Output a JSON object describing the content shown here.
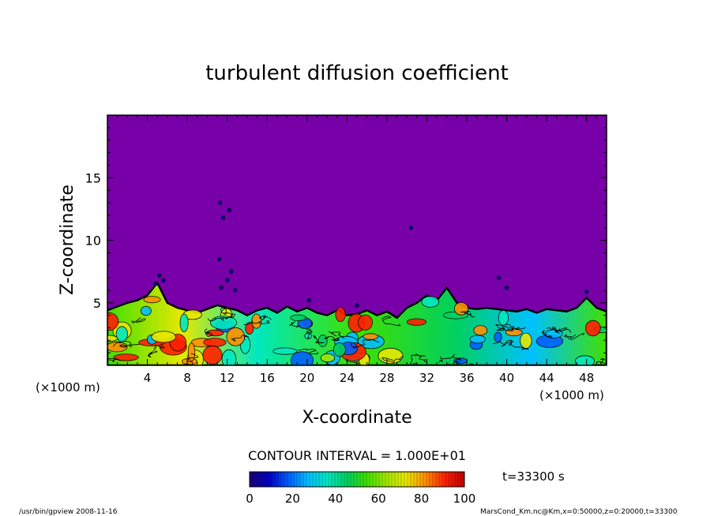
{
  "chart_data": {
    "type": "heatmap",
    "title": "turbulent diffusion coefficient",
    "xlabel": "X-coordinate",
    "ylabel": "Z-coordinate",
    "x_units_left": "(×1000 m)",
    "x_units_right": "(×1000 m)",
    "xlim": [
      0,
      50
    ],
    "ylim": [
      0,
      20
    ],
    "x_ticks": [
      4,
      8,
      12,
      16,
      20,
      24,
      28,
      32,
      36,
      40,
      44,
      48
    ],
    "x_tick_labels": [
      "4",
      "8",
      "12",
      "16",
      "20",
      "24",
      "28",
      "32",
      "36",
      "40",
      "44",
      "48"
    ],
    "y_ticks": [
      5,
      10,
      15
    ],
    "y_tick_labels": [
      "5",
      "10",
      "15"
    ],
    "background_value": 0,
    "turbulent_layer_top": [
      [
        0,
        4.4
      ],
      [
        1,
        4.7
      ],
      [
        2,
        5.0
      ],
      [
        3,
        5.2
      ],
      [
        4,
        5.6
      ],
      [
        5,
        6.6
      ],
      [
        6,
        5.0
      ],
      [
        7,
        4.6
      ],
      [
        8,
        4.4
      ],
      [
        9,
        4.2
      ],
      [
        10,
        4.5
      ],
      [
        11,
        4.8
      ],
      [
        12,
        4.6
      ],
      [
        13,
        4.4
      ],
      [
        14,
        4.0
      ],
      [
        15,
        4.4
      ],
      [
        16,
        4.6
      ],
      [
        17,
        4.2
      ],
      [
        18,
        4.7
      ],
      [
        19,
        4.3
      ],
      [
        20,
        4.6
      ],
      [
        21,
        4.2
      ],
      [
        22,
        4.0
      ],
      [
        23,
        4.4
      ],
      [
        24,
        4.0
      ],
      [
        25,
        4.1
      ],
      [
        26,
        4.4
      ],
      [
        27,
        4.0
      ],
      [
        28,
        4.3
      ],
      [
        29,
        3.8
      ],
      [
        30,
        4.6
      ],
      [
        31,
        5.0
      ],
      [
        32,
        5.6
      ],
      [
        33,
        5.2
      ],
      [
        34,
        6.2
      ],
      [
        35,
        5.0
      ],
      [
        36,
        4.6
      ],
      [
        37,
        4.5
      ],
      [
        38,
        4.6
      ],
      [
        39,
        4.5
      ],
      [
        40,
        4.4
      ],
      [
        41,
        4.3
      ],
      [
        42,
        4.5
      ],
      [
        43,
        4.2
      ],
      [
        44,
        4.5
      ],
      [
        45,
        4.4
      ],
      [
        46,
        4.3
      ],
      [
        47,
        4.6
      ],
      [
        48,
        5.4
      ],
      [
        49,
        4.6
      ],
      [
        50,
        4.3
      ]
    ],
    "contour_interval": "CONTOUR INTERVAL = 1.000E+01",
    "colorbar": {
      "min": 0,
      "max": 100,
      "tick_labels": [
        "0",
        "20",
        "40",
        "60",
        "80",
        "100"
      ]
    },
    "time_label": "t=33300 s"
  },
  "footer": {
    "left": "/usr/bin/gpview   2008-11-16",
    "right": "MarsCond_Km.nc@Km,x=0:50000,z=0:20000,t=33300"
  },
  "colors": {
    "background_field": "#7800a8",
    "colormap": [
      "#1a0078",
      "#0000c8",
      "#0060ff",
      "#00c0ff",
      "#00e8c0",
      "#00d060",
      "#40e000",
      "#a0e800",
      "#e8e800",
      "#ff9000",
      "#ff2000",
      "#c00000"
    ]
  }
}
